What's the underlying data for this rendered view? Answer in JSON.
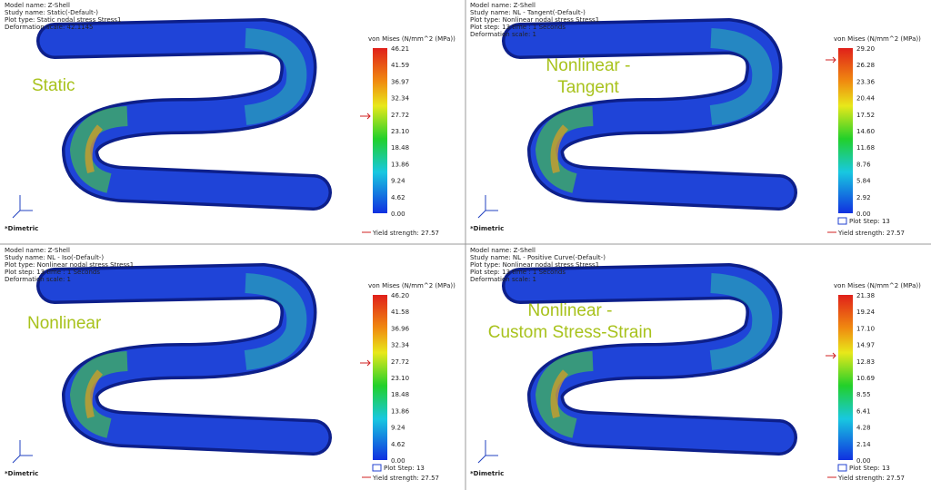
{
  "panels": [
    {
      "info": [
        "Model name: Z-Shell",
        "Study name: Static(-Default-)",
        "Plot type: Static nodal stress Stress1",
        "Deformation scale: 42.1145"
      ],
      "label": [
        "Static"
      ],
      "legend_title": "von Mises (N/mm^2 (MPa))",
      "ticks": [
        "46.21",
        "41.59",
        "36.97",
        "32.34",
        "27.72",
        "23.10",
        "18.48",
        "13.86",
        "9.24",
        "4.62",
        "0.00"
      ],
      "yield": "Yield strength: 27.57",
      "view": "*Dimetric"
    },
    {
      "info": [
        "Model name: Z-Shell",
        "Study name: NL - Tangent(-Default-)",
        "Plot type: Nonlinear nodal stress Stress1",
        "Plot step: 13   time : 1 Seconds",
        "Deformation scale: 1"
      ],
      "label": [
        "Nonlinear -",
        "Tangent"
      ],
      "legend_title": "von Mises (N/mm^2 (MPa))",
      "ticks": [
        "29.20",
        "26.28",
        "23.36",
        "20.44",
        "17.52",
        "14.60",
        "11.68",
        "8.76",
        "5.84",
        "2.92",
        "0.00"
      ],
      "plot_step": "Plot Step: 13",
      "yield": "Yield strength: 27.57",
      "view": "*Dimetric"
    },
    {
      "info": [
        "Model name: Z-Shell",
        "Study name: NL - Iso(-Default-)",
        "Plot type: Nonlinear nodal stress Stress1",
        "Plot step: 13   time : 1 Seconds",
        "Deformation scale: 1"
      ],
      "label": [
        "Nonlinear"
      ],
      "legend_title": "von Mises (N/mm^2 (MPa))",
      "ticks": [
        "46.20",
        "41.58",
        "36.96",
        "32.34",
        "27.72",
        "23.10",
        "18.48",
        "13.86",
        "9.24",
        "4.62",
        "0.00"
      ],
      "plot_step": "Plot Step: 13",
      "yield": "Yield strength: 27.57",
      "view": "*Dimetric"
    },
    {
      "info": [
        "Model name: Z-Shell",
        "Study name: NL - Positive Curve(-Default-)",
        "Plot type: Nonlinear nodal stress Stress1",
        "Plot step: 13   time : 1 Seconds",
        "Deformation scale: 1"
      ],
      "label": [
        "Nonlinear -",
        "Custom Stress-Strain"
      ],
      "legend_title": "von Mises (N/mm^2 (MPa))",
      "ticks": [
        "21.38",
        "19.24",
        "17.10",
        "14.97",
        "12.83",
        "10.69",
        "8.55",
        "6.41",
        "4.28",
        "2.14",
        "0.00"
      ],
      "plot_step": "Plot Step: 13",
      "yield": "Yield strength: 27.57",
      "view": "*Dimetric"
    }
  ]
}
